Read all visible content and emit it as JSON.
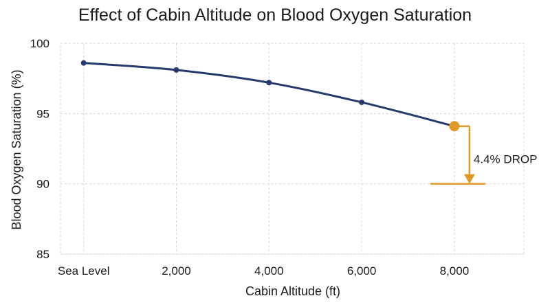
{
  "chart_data": {
    "type": "line",
    "title": "Effect of Cabin Altitude on Blood Oxygen Saturation",
    "xlabel": "Cabin Altitude (ft)",
    "ylabel": "Blood Oxygen Saturation (%)",
    "x": [
      0,
      2000,
      4000,
      6000,
      8000
    ],
    "x_tick_labels": [
      "Sea Level",
      "2,000",
      "4,000",
      "6,000",
      "8,000"
    ],
    "xlim": [
      -500,
      9500
    ],
    "ylim": [
      85,
      100
    ],
    "y_ticks": [
      85,
      90,
      95,
      100
    ],
    "series": [
      {
        "values": [
          98.6,
          98.1,
          97.2,
          95.8,
          94.1
        ]
      }
    ],
    "grid": true,
    "highlight_point": {
      "x": 8000,
      "y": 94.1
    },
    "annotation": {
      "text": "4.4% DROP",
      "from_y": 94.1,
      "to_y": 90
    },
    "colors": {
      "line": "#253a6b",
      "highlight": "#e09a25",
      "grid": "#d4d4d4",
      "text": "#1a1a1a"
    }
  }
}
